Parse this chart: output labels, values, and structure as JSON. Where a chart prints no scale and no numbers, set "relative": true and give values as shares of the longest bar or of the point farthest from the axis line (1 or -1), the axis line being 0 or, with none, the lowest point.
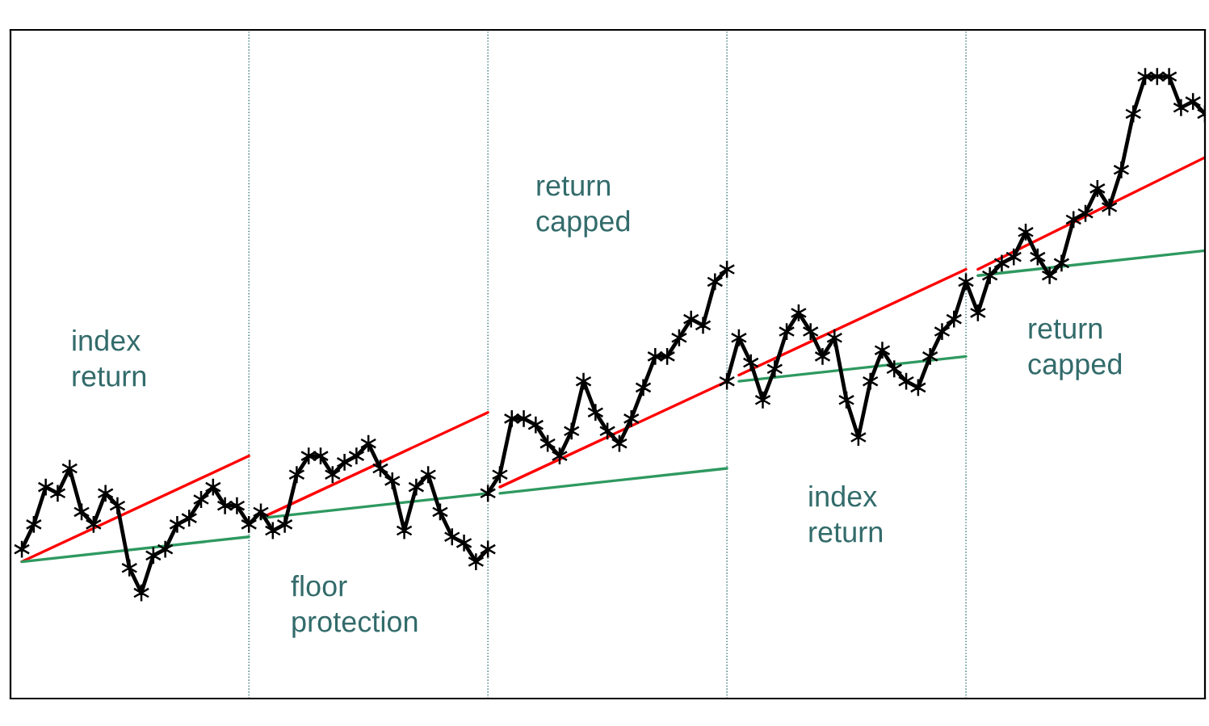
{
  "chart_data": {
    "type": "line",
    "relative": true,
    "legend": false,
    "grid": "x",
    "categories": [
      null,
      null,
      null,
      null,
      null,
      null,
      null,
      null,
      null,
      null,
      null,
      null,
      null,
      null,
      null,
      null,
      null,
      null,
      null,
      null,
      null,
      null,
      null,
      null,
      null,
      null,
      null,
      null,
      null,
      null,
      null,
      null,
      null,
      null,
      null,
      null,
      null,
      null,
      null,
      null,
      null,
      null,
      null,
      null,
      null,
      null,
      null,
      null,
      null,
      null,
      null,
      null,
      null,
      null,
      null,
      null,
      null,
      null,
      null,
      null,
      null,
      null,
      null,
      null,
      null,
      null,
      null,
      null,
      null,
      null,
      null,
      null,
      null,
      null,
      null,
      null,
      null,
      null,
      null,
      null,
      null,
      null,
      null,
      null,
      null,
      null,
      null,
      null,
      null,
      null,
      null,
      null,
      null,
      null,
      null,
      null,
      null,
      null,
      null,
      null
    ],
    "series": [
      {
        "color": "#000000",
        "marker": "cross",
        "values": [
          0.24,
          0.28,
          0.34,
          0.33,
          0.37,
          0.3,
          0.28,
          0.33,
          0.31,
          0.21,
          0.17,
          0.23,
          0.24,
          0.28,
          0.29,
          0.32,
          0.34,
          0.31,
          0.31,
          0.28,
          0.3,
          0.27,
          0.28,
          0.36,
          0.39,
          0.39,
          0.36,
          0.38,
          0.39,
          0.41,
          0.37,
          0.35,
          0.27,
          0.34,
          0.36,
          0.3,
          0.26,
          0.25,
          0.22,
          0.24,
          null,
          null,
          null,
          null,
          null,
          null,
          null,
          null,
          null,
          null,
          null,
          null,
          null,
          null,
          null,
          null,
          null,
          null,
          null,
          null,
          null,
          null,
          null,
          null,
          null,
          null,
          null,
          null,
          null,
          null,
          null,
          null,
          null,
          null,
          null,
          null,
          null,
          null,
          null,
          null,
          null,
          null,
          null,
          null,
          null,
          null,
          null,
          null,
          null,
          null,
          null,
          null,
          null,
          null,
          null,
          null,
          null,
          null,
          null,
          null
        ]
      },
      {
        "color": "#000000",
        "marker": "cross",
        "values": [
          null,
          null,
          null,
          null,
          null,
          null,
          null,
          null,
          null,
          null,
          null,
          null,
          null,
          null,
          null,
          null,
          null,
          null,
          null,
          null,
          null,
          null,
          null,
          null,
          null,
          null,
          null,
          null,
          null,
          null,
          null,
          null,
          null,
          null,
          null,
          null,
          null,
          null,
          null,
          0.33,
          0.36,
          0.45,
          0.45,
          0.44,
          0.41,
          0.39,
          0.43,
          0.51,
          0.46,
          0.43,
          0.41,
          0.45,
          0.5,
          0.55,
          0.55,
          0.58,
          0.61,
          0.6,
          0.67,
          0.69,
          null,
          null,
          null,
          null,
          null,
          null,
          null,
          null,
          null,
          null,
          null,
          null,
          null,
          null,
          null,
          null,
          null,
          null,
          null,
          null,
          null,
          null,
          null,
          null,
          null,
          null,
          null,
          null,
          null,
          null,
          null,
          null,
          null,
          null,
          null,
          null,
          null,
          null,
          null,
          null
        ]
      },
      {
        "color": "#000000",
        "marker": "cross",
        "values": [
          null,
          null,
          null,
          null,
          null,
          null,
          null,
          null,
          null,
          null,
          null,
          null,
          null,
          null,
          null,
          null,
          null,
          null,
          null,
          null,
          null,
          null,
          null,
          null,
          null,
          null,
          null,
          null,
          null,
          null,
          null,
          null,
          null,
          null,
          null,
          null,
          null,
          null,
          null,
          null,
          null,
          null,
          null,
          null,
          null,
          null,
          null,
          null,
          null,
          null,
          null,
          null,
          null,
          null,
          null,
          null,
          null,
          null,
          null,
          0.51,
          0.58,
          0.54,
          0.48,
          0.53,
          0.59,
          0.62,
          0.59,
          0.55,
          0.58,
          0.48,
          0.42,
          0.51,
          0.56,
          0.53,
          0.51,
          0.5,
          0.55,
          0.59,
          0.61,
          0.67,
          0.62,
          0.68,
          0.7,
          0.71,
          0.75,
          0.71,
          0.68,
          0.7,
          0.77,
          0.78,
          0.82,
          0.79,
          0.85,
          0.94,
          1.0,
          1.0,
          1.0,
          0.95,
          0.96,
          0.94
        ]
      },
      {
        "color": "#ff0000",
        "marker": "none",
        "values": [
          0.22,
          null,
          null,
          null,
          null,
          null,
          null,
          null,
          null,
          null,
          null,
          null,
          null,
          null,
          null,
          null,
          null,
          null,
          null,
          0.39,
          null,
          null,
          null,
          null,
          null,
          null,
          null,
          null,
          null,
          null,
          null,
          null,
          null,
          null,
          null,
          null,
          null,
          null,
          null,
          null,
          null,
          null,
          null,
          null,
          null,
          null,
          null,
          null,
          null,
          null,
          null,
          null,
          null,
          null,
          null,
          null,
          null,
          null,
          null,
          null,
          null,
          null,
          null,
          null,
          null,
          null,
          null,
          null,
          null,
          null,
          null,
          null,
          null,
          null,
          null,
          null,
          null,
          null,
          null,
          null,
          null,
          null,
          null,
          null,
          null,
          null,
          null,
          null,
          null,
          null,
          null,
          null,
          null,
          null,
          null,
          null,
          null,
          null,
          null,
          null
        ]
      },
      {
        "color": "#ff0000",
        "marker": "none",
        "values": [
          null,
          null,
          null,
          null,
          null,
          null,
          null,
          null,
          null,
          null,
          null,
          null,
          null,
          null,
          null,
          null,
          null,
          null,
          null,
          null,
          0.29,
          null,
          null,
          null,
          null,
          null,
          null,
          null,
          null,
          null,
          null,
          null,
          null,
          null,
          null,
          null,
          null,
          null,
          null,
          0.46,
          null,
          null,
          null,
          null,
          null,
          null,
          null,
          null,
          null,
          null,
          null,
          null,
          null,
          null,
          null,
          null,
          null,
          null,
          null,
          null,
          null,
          null,
          null,
          null,
          null,
          null,
          null,
          null,
          null,
          null,
          null,
          null,
          null,
          null,
          null,
          null,
          null,
          null,
          null,
          null,
          null,
          null,
          null,
          null,
          null,
          null,
          null,
          null,
          null,
          null,
          null,
          null,
          null,
          null,
          null,
          null,
          null,
          null,
          null,
          null
        ]
      },
      {
        "color": "#ff0000",
        "marker": "none",
        "values": [
          null,
          null,
          null,
          null,
          null,
          null,
          null,
          null,
          null,
          null,
          null,
          null,
          null,
          null,
          null,
          null,
          null,
          null,
          null,
          null,
          null,
          null,
          null,
          null,
          null,
          null,
          null,
          null,
          null,
          null,
          null,
          null,
          null,
          null,
          null,
          null,
          null,
          null,
          null,
          null,
          0.34,
          null,
          null,
          null,
          null,
          null,
          null,
          null,
          null,
          null,
          null,
          null,
          null,
          null,
          null,
          null,
          null,
          null,
          null,
          0.51,
          null,
          null,
          null,
          null,
          null,
          null,
          null,
          null,
          null,
          null,
          null,
          null,
          null,
          null,
          null,
          null,
          null,
          null,
          null,
          null,
          null,
          null,
          null,
          null,
          null,
          null,
          null,
          null,
          null,
          null,
          null,
          null,
          null,
          null,
          null,
          null,
          null,
          null,
          null,
          null
        ]
      },
      {
        "color": "#ff0000",
        "marker": "none",
        "values": [
          null,
          null,
          null,
          null,
          null,
          null,
          null,
          null,
          null,
          null,
          null,
          null,
          null,
          null,
          null,
          null,
          null,
          null,
          null,
          null,
          null,
          null,
          null,
          null,
          null,
          null,
          null,
          null,
          null,
          null,
          null,
          null,
          null,
          null,
          null,
          null,
          null,
          null,
          null,
          null,
          null,
          null,
          null,
          null,
          null,
          null,
          null,
          null,
          null,
          null,
          null,
          null,
          null,
          null,
          null,
          null,
          null,
          null,
          null,
          null,
          0.52,
          null,
          null,
          null,
          null,
          null,
          null,
          null,
          null,
          null,
          null,
          null,
          null,
          null,
          null,
          null,
          null,
          null,
          null,
          0.69,
          null,
          null,
          null,
          null,
          null,
          null,
          null,
          null,
          null,
          null,
          null,
          null,
          null,
          null,
          null,
          null,
          null,
          null,
          null,
          null
        ]
      },
      {
        "color": "#ff0000",
        "marker": "none",
        "values": [
          null,
          null,
          null,
          null,
          null,
          null,
          null,
          null,
          null,
          null,
          null,
          null,
          null,
          null,
          null,
          null,
          null,
          null,
          null,
          null,
          null,
          null,
          null,
          null,
          null,
          null,
          null,
          null,
          null,
          null,
          null,
          null,
          null,
          null,
          null,
          null,
          null,
          null,
          null,
          null,
          null,
          null,
          null,
          null,
          null,
          null,
          null,
          null,
          null,
          null,
          null,
          null,
          null,
          null,
          null,
          null,
          null,
          null,
          null,
          null,
          null,
          null,
          null,
          null,
          null,
          null,
          null,
          null,
          null,
          null,
          null,
          null,
          null,
          null,
          null,
          null,
          null,
          null,
          null,
          null,
          0.69,
          null,
          null,
          null,
          null,
          null,
          null,
          null,
          null,
          null,
          null,
          null,
          null,
          null,
          null,
          null,
          null,
          null,
          null,
          0.87
        ]
      },
      {
        "color": "#2e9960",
        "marker": "none",
        "values": [
          0.22,
          null,
          null,
          null,
          null,
          null,
          null,
          null,
          null,
          null,
          null,
          null,
          null,
          null,
          null,
          null,
          null,
          null,
          null,
          0.26,
          null,
          null,
          null,
          null,
          null,
          null,
          null,
          null,
          null,
          null,
          null,
          null,
          null,
          null,
          null,
          null,
          null,
          null,
          null,
          null,
          null,
          null,
          null,
          null,
          null,
          null,
          null,
          null,
          null,
          null,
          null,
          null,
          null,
          null,
          null,
          null,
          null,
          null,
          null,
          null,
          null,
          null,
          null,
          null,
          null,
          null,
          null,
          null,
          null,
          null,
          null,
          null,
          null,
          null,
          null,
          null,
          null,
          null,
          null,
          null,
          null,
          null,
          null,
          null,
          null,
          null,
          null,
          null,
          null,
          null,
          null,
          null,
          null,
          null,
          null,
          null,
          null,
          null,
          null,
          null
        ]
      },
      {
        "color": "#2e9960",
        "marker": "none",
        "values": [
          null,
          null,
          null,
          null,
          null,
          null,
          null,
          null,
          null,
          null,
          null,
          null,
          null,
          null,
          null,
          null,
          null,
          null,
          null,
          null,
          0.29,
          null,
          null,
          null,
          null,
          null,
          null,
          null,
          null,
          null,
          null,
          null,
          null,
          null,
          null,
          null,
          null,
          null,
          null,
          0.33,
          null,
          null,
          null,
          null,
          null,
          null,
          null,
          null,
          null,
          null,
          null,
          null,
          null,
          null,
          null,
          null,
          null,
          null,
          null,
          null,
          null,
          null,
          null,
          null,
          null,
          null,
          null,
          null,
          null,
          null,
          null,
          null,
          null,
          null,
          null,
          null,
          null,
          null,
          null,
          null,
          null,
          null,
          null,
          null,
          null,
          null,
          null,
          null,
          null,
          null,
          null,
          null,
          null,
          null,
          null,
          null,
          null,
          null,
          null,
          null
        ]
      },
      {
        "color": "#2e9960",
        "marker": "none",
        "values": [
          null,
          null,
          null,
          null,
          null,
          null,
          null,
          null,
          null,
          null,
          null,
          null,
          null,
          null,
          null,
          null,
          null,
          null,
          null,
          null,
          null,
          null,
          null,
          null,
          null,
          null,
          null,
          null,
          null,
          null,
          null,
          null,
          null,
          null,
          null,
          null,
          null,
          null,
          null,
          null,
          0.33,
          null,
          null,
          null,
          null,
          null,
          null,
          null,
          null,
          null,
          null,
          null,
          null,
          null,
          null,
          null,
          null,
          null,
          null,
          0.37,
          null,
          null,
          null,
          null,
          null,
          null,
          null,
          null,
          null,
          null,
          null,
          null,
          null,
          null,
          null,
          null,
          null,
          null,
          null,
          null,
          null,
          null,
          null,
          null,
          null,
          null,
          null,
          null,
          null,
          null,
          null,
          null,
          null,
          null,
          null,
          null,
          null,
          null,
          null,
          null
        ]
      },
      {
        "color": "#2e9960",
        "marker": "none",
        "values": [
          null,
          null,
          null,
          null,
          null,
          null,
          null,
          null,
          null,
          null,
          null,
          null,
          null,
          null,
          null,
          null,
          null,
          null,
          null,
          null,
          null,
          null,
          null,
          null,
          null,
          null,
          null,
          null,
          null,
          null,
          null,
          null,
          null,
          null,
          null,
          null,
          null,
          null,
          null,
          null,
          null,
          null,
          null,
          null,
          null,
          null,
          null,
          null,
          null,
          null,
          null,
          null,
          null,
          null,
          null,
          null,
          null,
          null,
          null,
          null,
          0.51,
          null,
          null,
          null,
          null,
          null,
          null,
          null,
          null,
          null,
          null,
          null,
          null,
          null,
          null,
          null,
          null,
          null,
          null,
          0.55,
          null,
          null,
          null,
          null,
          null,
          null,
          null,
          null,
          null,
          null,
          null,
          null,
          null,
          null,
          null,
          null,
          null,
          null,
          null,
          null
        ]
      },
      {
        "color": "#2e9960",
        "marker": "none",
        "values": [
          null,
          null,
          null,
          null,
          null,
          null,
          null,
          null,
          null,
          null,
          null,
          null,
          null,
          null,
          null,
          null,
          null,
          null,
          null,
          null,
          null,
          null,
          null,
          null,
          null,
          null,
          null,
          null,
          null,
          null,
          null,
          null,
          null,
          null,
          null,
          null,
          null,
          null,
          null,
          null,
          null,
          null,
          null,
          null,
          null,
          null,
          null,
          null,
          null,
          null,
          null,
          null,
          null,
          null,
          null,
          null,
          null,
          null,
          null,
          null,
          null,
          null,
          null,
          null,
          null,
          null,
          null,
          null,
          null,
          null,
          null,
          null,
          null,
          null,
          null,
          null,
          null,
          null,
          null,
          null,
          0.68,
          null,
          null,
          null,
          null,
          null,
          null,
          null,
          null,
          null,
          null,
          null,
          null,
          null,
          null,
          null,
          null,
          null,
          null,
          0.72
        ]
      }
    ],
    "annotations": [
      "index\nreturn",
      "floor\nprotection",
      "return\ncapped",
      "index\nreturn",
      "return\ncapped"
    ]
  }
}
